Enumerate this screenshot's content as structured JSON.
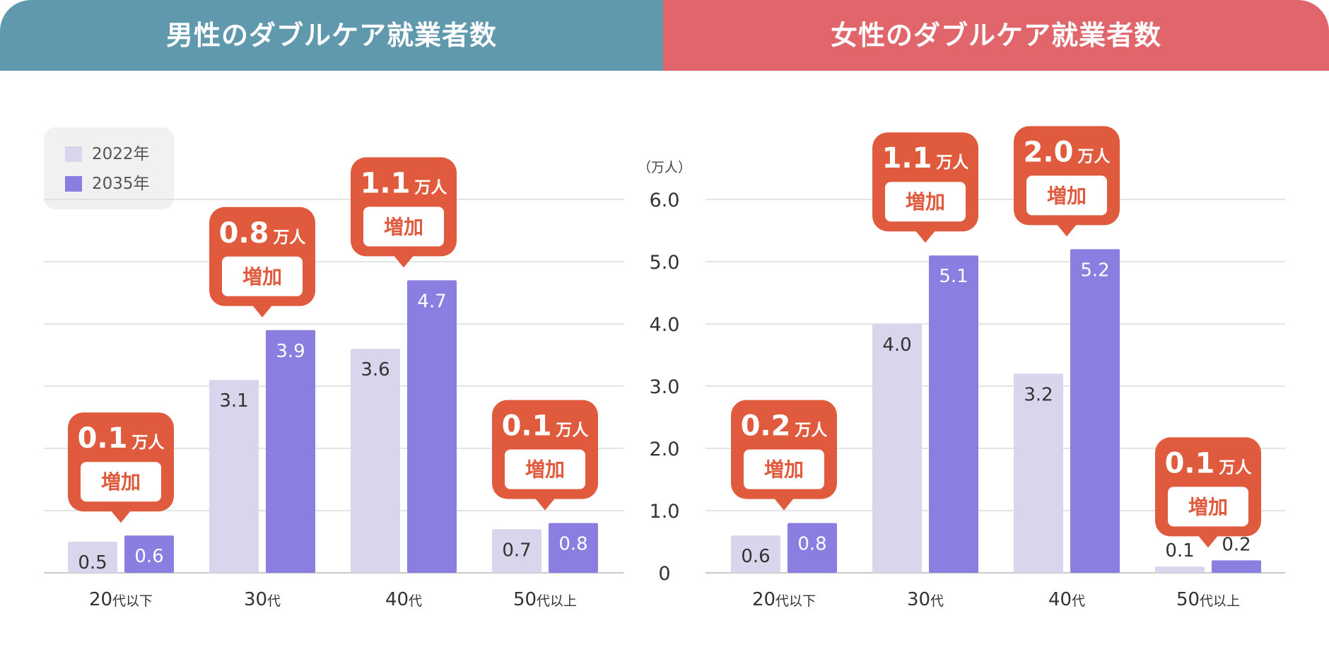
{
  "header": {
    "male_title": "男性のダブルケア就業者数",
    "female_title": "女性のダブルケア就業者数"
  },
  "legend": [
    {
      "label": "2022年",
      "color": "#d8d5ec"
    },
    {
      "label": "2035年",
      "color": "#8a7ee0"
    }
  ],
  "colors": {
    "bar_2022": "#d8d5ec",
    "bar_2035": "#8a7ee0",
    "callout": "#e05a3e",
    "male_header": "#6099ae",
    "female_header": "#e0666c"
  },
  "axis": {
    "unit": "（万人）",
    "ticks": [
      "0",
      "1.0",
      "2.0",
      "3.0",
      "4.0",
      "5.0",
      "6.0"
    ]
  },
  "chart_data": [
    {
      "type": "bar",
      "title": "男性のダブルケア就業者数",
      "categories": [
        {
          "num": "20",
          "suffix": "代以下"
        },
        {
          "num": "30",
          "suffix": "代"
        },
        {
          "num": "40",
          "suffix": "代"
        },
        {
          "num": "50",
          "suffix": "代以上"
        }
      ],
      "series": [
        {
          "name": "2022年",
          "values": [
            0.5,
            3.1,
            3.6,
            0.7
          ],
          "labels": [
            "0.5",
            "3.1",
            "3.6",
            "0.7"
          ]
        },
        {
          "name": "2035年",
          "values": [
            0.6,
            3.9,
            4.7,
            0.8
          ],
          "labels": [
            "0.6",
            "3.9",
            "4.7",
            "0.8"
          ]
        }
      ],
      "increase": {
        "values": [
          "0.1",
          "0.8",
          "1.1",
          "0.1"
        ],
        "unit": "万人",
        "word": "増加"
      },
      "ylabel": "（万人）",
      "ylim": [
        0,
        6
      ],
      "grid": true,
      "legend_position": "top-left"
    },
    {
      "type": "bar",
      "title": "女性のダブルケア就業者数",
      "categories": [
        {
          "num": "20",
          "suffix": "代以下"
        },
        {
          "num": "30",
          "suffix": "代"
        },
        {
          "num": "40",
          "suffix": "代"
        },
        {
          "num": "50",
          "suffix": "代以上"
        }
      ],
      "series": [
        {
          "name": "2022年",
          "values": [
            0.6,
            4.0,
            3.2,
            0.1
          ],
          "labels": [
            "0.6",
            "4.0",
            "3.2",
            "0.1"
          ]
        },
        {
          "name": "2035年",
          "values": [
            0.8,
            5.1,
            5.2,
            0.2
          ],
          "labels": [
            "0.8",
            "5.1",
            "5.2",
            "0.2"
          ]
        }
      ],
      "increase": {
        "values": [
          "0.2",
          "1.1",
          "2.0",
          "0.1"
        ],
        "unit": "万人",
        "word": "増加"
      },
      "ylabel": "（万人）",
      "ylim": [
        0,
        6
      ],
      "grid": true
    }
  ]
}
